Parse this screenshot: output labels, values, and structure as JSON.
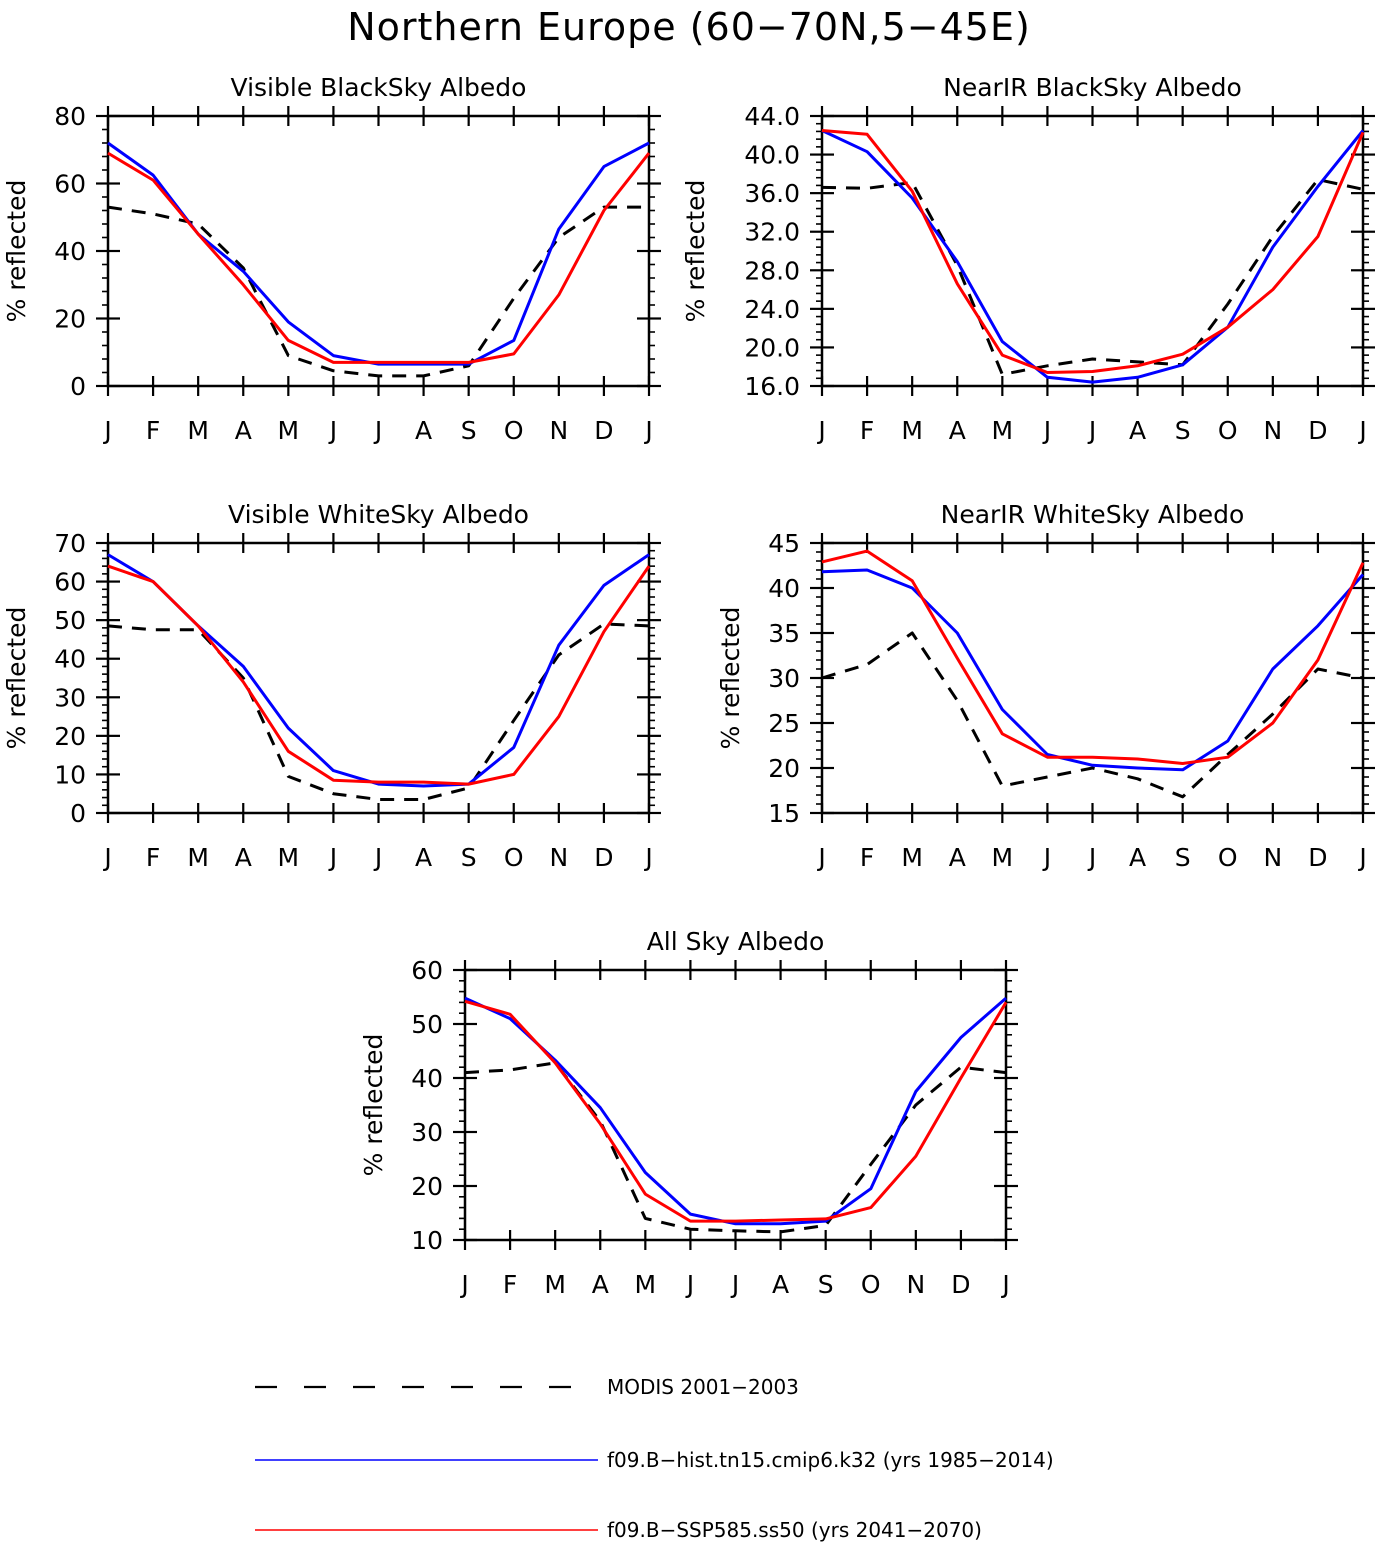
{
  "title": "Northern Europe (60−70N,5−45E)",
  "legend": [
    {
      "label": "MODIS 2001−2003",
      "color": "#000000",
      "dash": true
    },
    {
      "label": "f09.B−hist.tn15.cmip6.k32 (yrs 1985−2014)",
      "color": "#0000ff",
      "dash": false
    },
    {
      "label": "f09.B−SSP585.ss50 (yrs 2041−2070)",
      "color": "#ff0000",
      "dash": false
    }
  ],
  "chart_data": [
    {
      "type": "line",
      "title": "Visible BlackSky Albedo",
      "ylabel": "% reflected",
      "categories": [
        "J",
        "F",
        "M",
        "A",
        "M",
        "J",
        "J",
        "A",
        "S",
        "O",
        "N",
        "D",
        "J"
      ],
      "ylim": [
        0,
        80
      ],
      "yticks": [
        "0",
        "20",
        "40",
        "60",
        "80"
      ],
      "series": [
        {
          "name": "MODIS 2001−2003",
          "values": [
            53,
            51,
            48,
            35,
            9,
            4.5,
            3,
            3,
            6,
            26,
            44,
            53,
            53
          ]
        },
        {
          "name": "f09.B−hist.tn15.cmip6.k32 (yrs 1985−2014)",
          "values": [
            72,
            62.5,
            45,
            34,
            19,
            9,
            6.5,
            6.5,
            6.5,
            13.5,
            46.5,
            65,
            72
          ]
        },
        {
          "name": "f09.B−SSP585.ss50 (yrs 2041−2070)",
          "values": [
            69,
            61,
            45,
            30,
            13.5,
            7,
            7,
            7,
            7,
            9.5,
            27,
            52,
            69
          ]
        }
      ]
    },
    {
      "type": "line",
      "title": "NearIR BlackSky Albedo",
      "ylabel": "% reflected",
      "categories": [
        "J",
        "F",
        "M",
        "A",
        "M",
        "J",
        "J",
        "A",
        "S",
        "O",
        "N",
        "D",
        "J"
      ],
      "ylim": [
        16,
        44
      ],
      "yticks": [
        "16.0",
        "20.0",
        "24.0",
        "28.0",
        "32.0",
        "36.0",
        "40.0",
        "44.0"
      ],
      "series": [
        {
          "name": "MODIS 2001−2003",
          "values": [
            36.6,
            36.5,
            37.1,
            28.5,
            17.2,
            18.1,
            18.8,
            18.5,
            18.2,
            24.5,
            31.5,
            37.4,
            36.4
          ]
        },
        {
          "name": "f09.B−hist.tn15.cmip6.k32 (yrs 1985−2014)",
          "values": [
            42.5,
            40.3,
            35.5,
            28.9,
            20.6,
            16.9,
            16.4,
            16.9,
            18.2,
            22.1,
            30.4,
            36.7,
            42.5
          ]
        },
        {
          "name": "f09.B−SSP585.ss50 (yrs 2041−2070)",
          "values": [
            42.5,
            42.1,
            36.2,
            26.6,
            19.2,
            17.4,
            17.5,
            18.1,
            19.3,
            22.1,
            26.0,
            31.5,
            42.3
          ]
        }
      ]
    },
    {
      "type": "line",
      "title": "Visible WhiteSky Albedo",
      "ylabel": "% reflected",
      "categories": [
        "J",
        "F",
        "M",
        "A",
        "M",
        "J",
        "J",
        "A",
        "S",
        "O",
        "N",
        "D",
        "J"
      ],
      "ylim": [
        0,
        70
      ],
      "yticks": [
        "0",
        "10",
        "20",
        "30",
        "40",
        "50",
        "60",
        "70"
      ],
      "series": [
        {
          "name": "MODIS 2001−2003",
          "values": [
            48.5,
            47.5,
            47.5,
            35,
            9.5,
            5,
            3.5,
            3.5,
            6.5,
            24,
            41,
            49,
            48.5
          ]
        },
        {
          "name": "f09.B−hist.tn15.cmip6.k32 (yrs 1985−2014)",
          "values": [
            67,
            60,
            48.5,
            38,
            22,
            11,
            7.5,
            7,
            7.5,
            17,
            43.5,
            59,
            67
          ]
        },
        {
          "name": "f09.B−SSP585.ss50 (yrs 2041−2070)",
          "values": [
            64,
            60,
            48.5,
            34,
            16,
            8.5,
            8,
            8,
            7.5,
            10,
            25,
            47,
            64
          ]
        }
      ]
    },
    {
      "type": "line",
      "title": "NearIR WhiteSky Albedo",
      "ylabel": "% reflected",
      "categories": [
        "J",
        "F",
        "M",
        "A",
        "M",
        "J",
        "J",
        "A",
        "S",
        "O",
        "N",
        "D",
        "J"
      ],
      "ylim": [
        15,
        45
      ],
      "yticks": [
        "15",
        "20",
        "25",
        "30",
        "35",
        "40",
        "45"
      ],
      "series": [
        {
          "name": "MODIS 2001−2003",
          "values": [
            30,
            31.5,
            35,
            27.5,
            18,
            19,
            20,
            18.8,
            16.8,
            21.5,
            26,
            31,
            30
          ]
        },
        {
          "name": "f09.B−hist.tn15.cmip6.k32 (yrs 1985−2014)",
          "values": [
            41.8,
            42,
            40,
            35,
            26.5,
            21.5,
            20.3,
            20,
            19.8,
            23,
            31,
            35.8,
            41.5
          ]
        },
        {
          "name": "f09.B−SSP585.ss50 (yrs 2041−2070)",
          "values": [
            42.9,
            44.1,
            40.8,
            32.2,
            23.8,
            21.2,
            21.2,
            21,
            20.5,
            21.2,
            25,
            32,
            42.8
          ]
        }
      ]
    },
    {
      "type": "line",
      "title": "All Sky Albedo",
      "ylabel": "% reflected",
      "categories": [
        "J",
        "F",
        "M",
        "A",
        "M",
        "J",
        "J",
        "A",
        "S",
        "O",
        "N",
        "D",
        "J"
      ],
      "ylim": [
        10,
        60
      ],
      "yticks": [
        "10",
        "20",
        "30",
        "40",
        "50",
        "60"
      ],
      "series": [
        {
          "name": "MODIS 2001−2003",
          "values": [
            41,
            41.5,
            42.8,
            32,
            14,
            12,
            11.7,
            11.5,
            12.7,
            24,
            35,
            42,
            41
          ]
        },
        {
          "name": "f09.B−hist.tn15.cmip6.k32 (yrs 1985−2014)",
          "values": [
            54.8,
            51,
            43.3,
            34.5,
            22.5,
            14.8,
            13,
            13,
            13.5,
            19.5,
            37.5,
            47.5,
            54.8
          ]
        },
        {
          "name": "f09.B−SSP585.ss50 (yrs 2041−2070)",
          "values": [
            54.2,
            51.8,
            42.8,
            31.5,
            18.5,
            13.5,
            13.5,
            13.7,
            13.9,
            16,
            25.5,
            40,
            54
          ]
        }
      ]
    }
  ]
}
